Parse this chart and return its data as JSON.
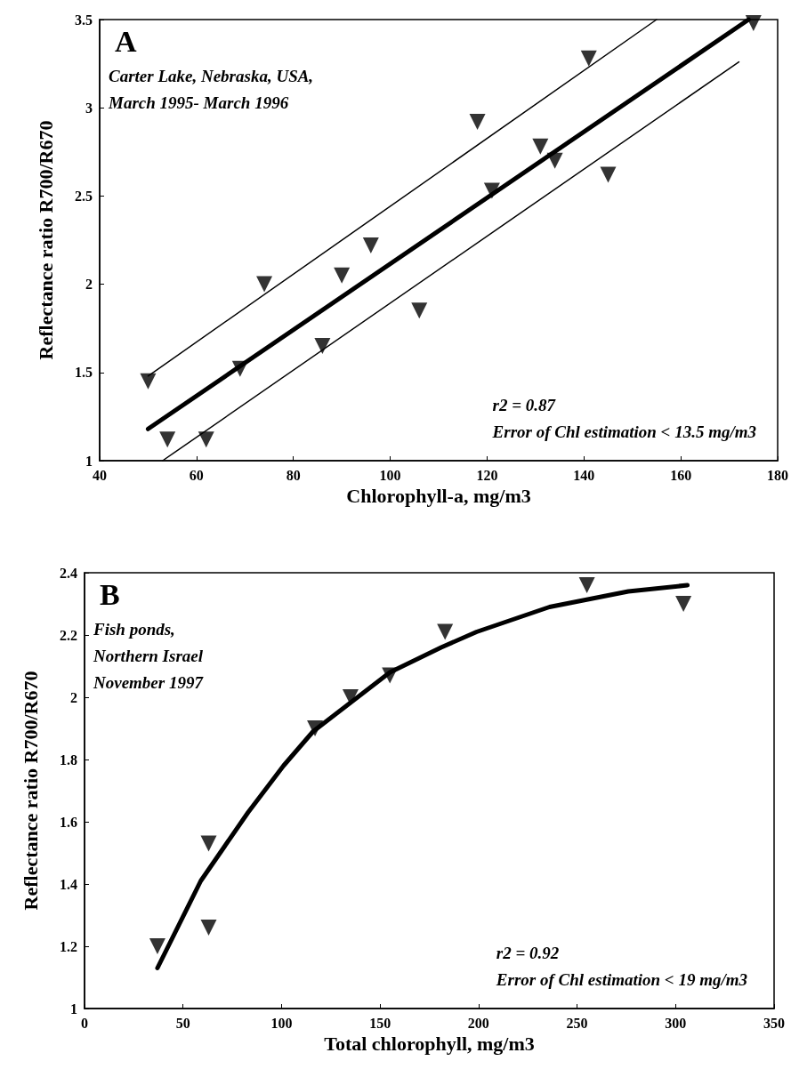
{
  "chart_data": [
    {
      "type": "scatter",
      "title": "A",
      "xlabel": "Chlorophyll-a, mg/m3",
      "ylabel": "Reflectance ratio R700/R670",
      "annotations": [
        "Carter Lake, Nebraska, USA,\nMarch 1995- March 1996",
        "r2 = 0.87\nError of Chl estimation < 13.5 mg/m3"
      ],
      "xlim": [
        40,
        180
      ],
      "xticks": [
        40,
        60,
        80,
        100,
        120,
        140,
        160,
        180
      ],
      "ylim": [
        1,
        3.5
      ],
      "yticks": [
        1,
        1.5,
        2,
        2.5,
        3,
        3.5
      ],
      "grid": false,
      "series": [
        {
          "marker": "triangle",
          "color": "#000000",
          "x": [
            50,
            54,
            62,
            69,
            74,
            86,
            90,
            96,
            106,
            118,
            121,
            131,
            134,
            141,
            145,
            175
          ],
          "values": [
            1.45,
            1.12,
            1.12,
            1.52,
            2.0,
            1.65,
            2.05,
            2.22,
            1.85,
            2.92,
            2.53,
            2.78,
            2.7,
            3.28,
            2.62,
            3.48
          ]
        },
        {
          "type": "line",
          "marker": "none",
          "color": "#000000",
          "x": [
            50,
            174
          ],
          "values": [
            1.18,
            3.5
          ]
        },
        {
          "type": "line",
          "marker": "none",
          "color": "#000000",
          "x": [
            50,
            155
          ],
          "values": [
            1.48,
            3.5
          ]
        },
        {
          "type": "line",
          "marker": "none",
          "color": "#000000",
          "x": [
            53,
            172
          ],
          "values": [
            1,
            3.26
          ]
        }
      ]
    },
    {
      "type": "scatter",
      "title": "B",
      "xlabel": "Total chlorophyll, mg/m3",
      "ylabel": "Reflectance ratio R700/R670",
      "annotations": [
        "Fish ponds,\nNorthern Israel\nNovember 1997",
        "r2 = 0.92\nError of Chl estimation < 19 mg/m3"
      ],
      "xlim": [
        0,
        350
      ],
      "xticks": [
        0,
        50,
        100,
        150,
        200,
        250,
        300,
        350
      ],
      "ylim": [
        1,
        2.4
      ],
      "yticks": [
        1,
        1.2,
        1.4,
        1.6,
        1.8,
        2,
        2.2,
        2.4
      ],
      "grid": false,
      "series": [
        {
          "marker": "triangle",
          "color": "#000000",
          "x": [
            37,
            63,
            63,
            117,
            135,
            155,
            183,
            255,
            304
          ],
          "values": [
            1.2,
            1.53,
            1.26,
            1.9,
            2.0,
            2.07,
            2.21,
            2.36,
            2.3
          ]
        },
        {
          "type": "line",
          "marker": "none",
          "color": "#000000",
          "x": [
            37,
            59,
            83,
            101,
            116,
            155,
            181,
            199,
            236,
            276,
            306
          ],
          "values": [
            1.13,
            1.41,
            1.63,
            1.78,
            1.89,
            2.08,
            2.16,
            2.21,
            2.29,
            2.34,
            2.36
          ]
        }
      ]
    }
  ]
}
